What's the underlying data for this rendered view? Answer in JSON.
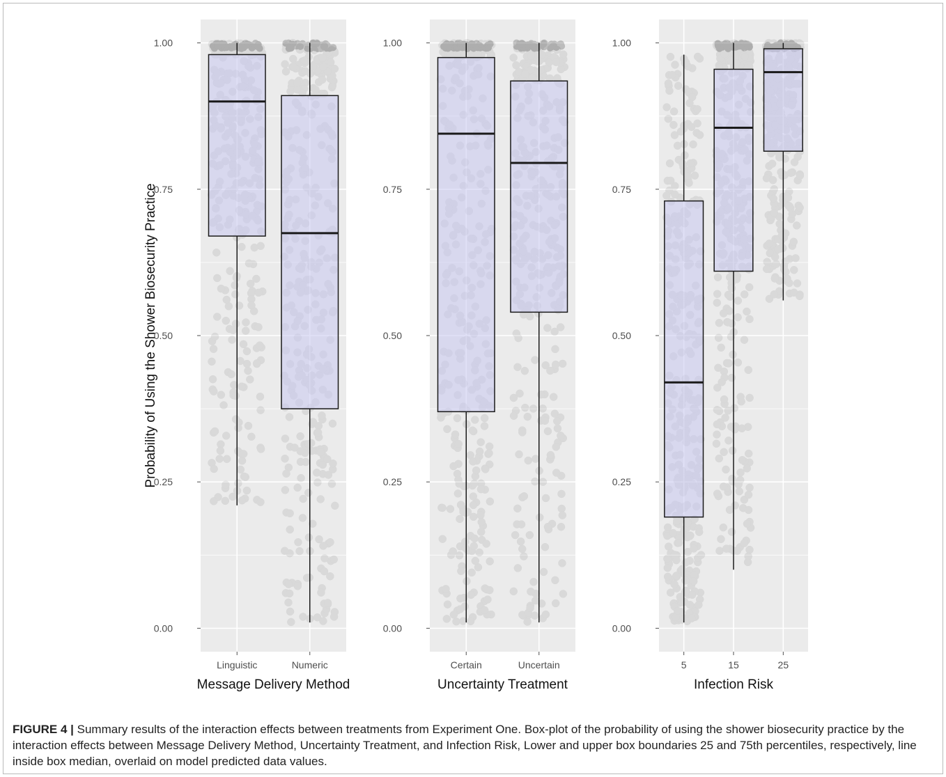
{
  "colors": {
    "panel_bg": "#ebebeb",
    "grid": "#ffffff",
    "box_fill": "#c9c9f0",
    "box_stroke": "#1a1a1a",
    "point": "#333333",
    "text": "#2b2b2b"
  },
  "caption": {
    "label": "FIGURE 4 |",
    "text": "Summary results of the interaction effects between treatments from Experiment One. Box-plot of the probability of using the shower biosecurity practice by the interaction effects between Message Delivery Method, Uncertainty Treatment, and Infection Risk, Lower and upper box boundaries 25 and 75th percentiles, respectively, line inside box median, overlaid on model predicted data values."
  },
  "chart_data": [
    {
      "type": "box",
      "xlabel": "Message Delivery Method",
      "ylabel": "Probability of Using the Shower Biosecurity Practice",
      "ylim": [
        -0.04,
        1.04
      ],
      "yticks": [
        "0.00",
        "0.25",
        "0.50",
        "0.75",
        "1.00"
      ],
      "grid": true,
      "categories": [
        "Linguistic",
        "Numeric"
      ],
      "boxes": [
        {
          "min": 0.21,
          "q1": 0.67,
          "median": 0.9,
          "q3": 0.98,
          "max": 1.0
        },
        {
          "min": 0.01,
          "q1": 0.375,
          "median": 0.675,
          "q3": 0.91,
          "max": 1.0
        }
      ]
    },
    {
      "type": "box",
      "xlabel": "Uncertainty Treatment",
      "ylim": [
        -0.04,
        1.04
      ],
      "yticks": [
        "0.00",
        "0.25",
        "0.50",
        "0.75",
        "1.00"
      ],
      "grid": true,
      "categories": [
        "Certain",
        "Uncertain"
      ],
      "boxes": [
        {
          "min": 0.01,
          "q1": 0.37,
          "median": 0.845,
          "q3": 0.975,
          "max": 1.0
        },
        {
          "min": 0.01,
          "q1": 0.54,
          "median": 0.795,
          "q3": 0.935,
          "max": 1.0
        }
      ]
    },
    {
      "type": "box",
      "xlabel": "Infection Risk",
      "ylim": [
        -0.04,
        1.04
      ],
      "yticks": [
        "0.00",
        "0.25",
        "0.50",
        "0.75",
        "1.00"
      ],
      "grid": true,
      "categories": [
        "5",
        "15",
        "25"
      ],
      "boxes": [
        {
          "min": 0.01,
          "q1": 0.19,
          "median": 0.42,
          "q3": 0.73,
          "max": 0.98
        },
        {
          "min": 0.1,
          "q1": 0.61,
          "median": 0.855,
          "q3": 0.955,
          "max": 1.0
        },
        {
          "min": 0.56,
          "q1": 0.815,
          "median": 0.95,
          "q3": 0.99,
          "max": 1.0
        }
      ]
    }
  ]
}
